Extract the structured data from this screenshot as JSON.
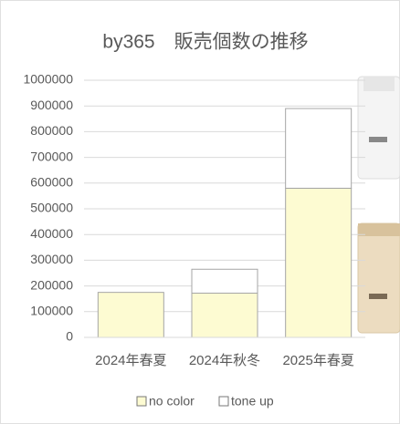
{
  "chart_data": {
    "type": "stacked_bar",
    "title": "by365　販売個数の推移",
    "categories": [
      "2024年春夏",
      "2024年秋冬",
      "2025年春夏"
    ],
    "series": [
      {
        "name": "no color",
        "color": "#fdfbd2",
        "values": [
          175000,
          172000,
          580000
        ]
      },
      {
        "name": "tone up",
        "color": "#ffffff",
        "values": [
          0,
          93000,
          310000
        ]
      }
    ],
    "ylim": [
      0,
      1000000
    ],
    "yticks": [
      0,
      100000,
      200000,
      300000,
      400000,
      500000,
      600000,
      700000,
      800000,
      900000,
      1000000
    ],
    "grid": true,
    "legend": "bottom"
  }
}
